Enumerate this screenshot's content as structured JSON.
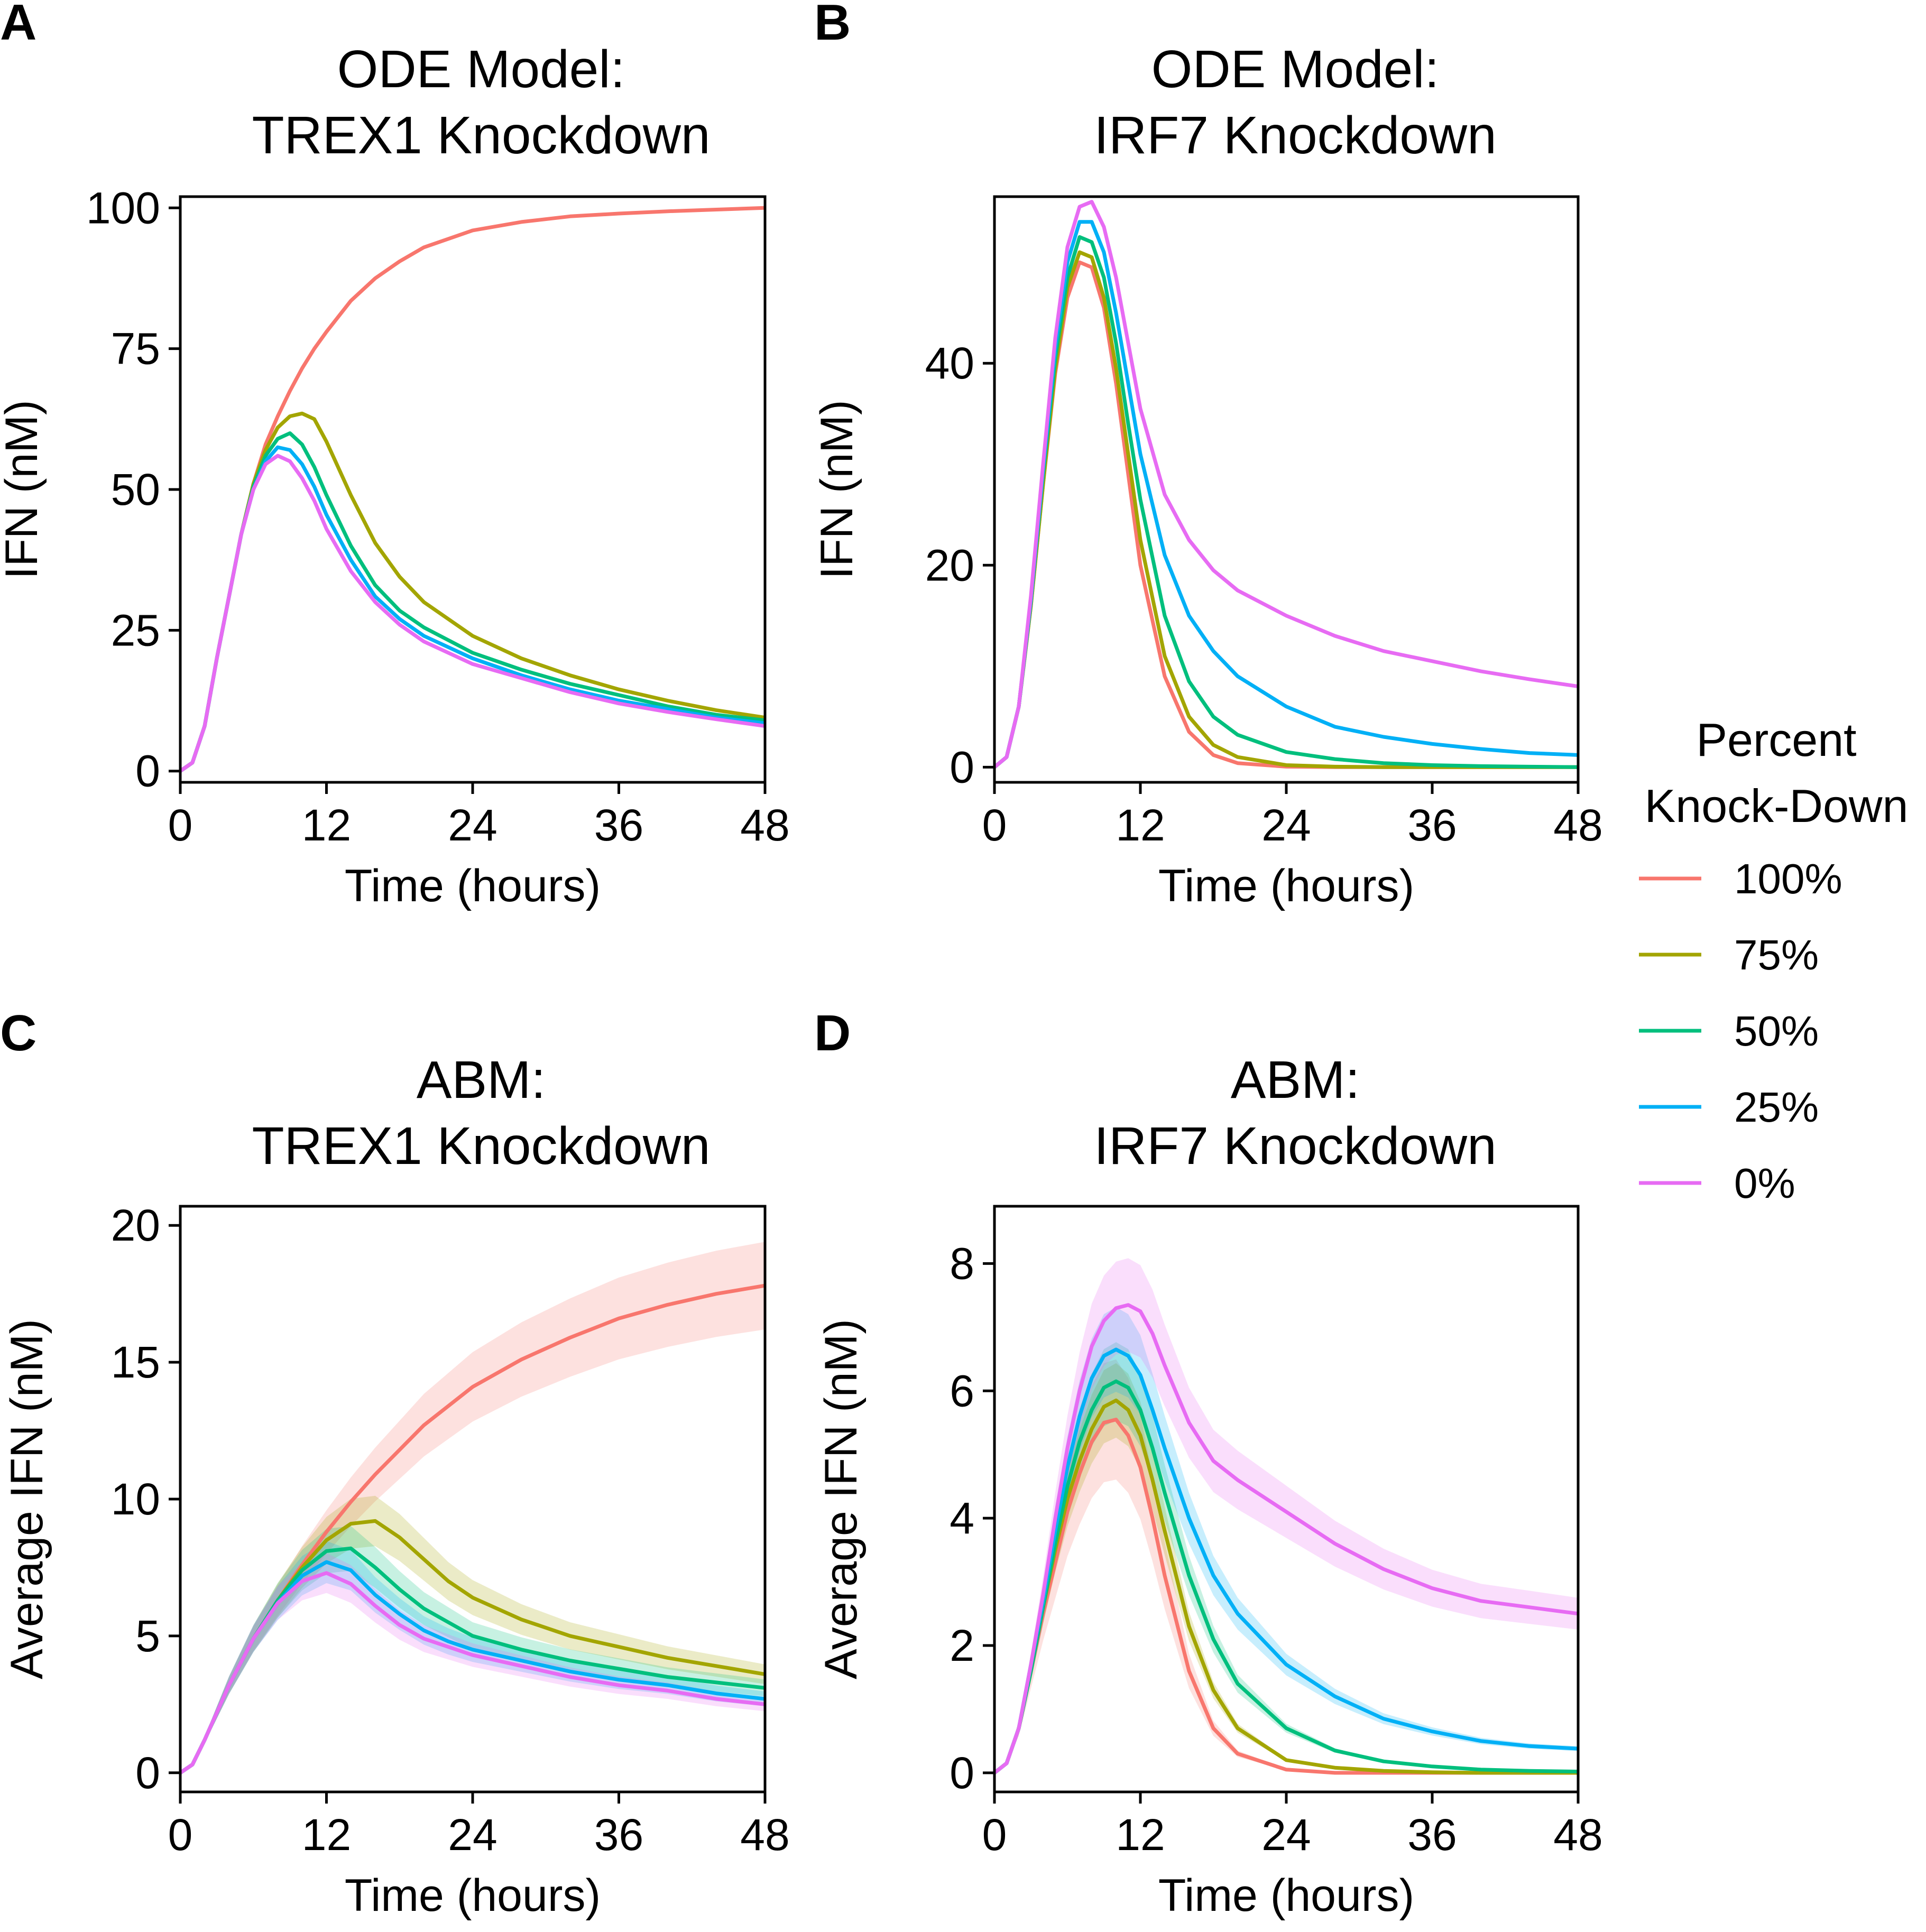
{
  "legend": {
    "title": [
      "Percent",
      "Knock-Down"
    ],
    "entries": [
      {
        "label": "100%",
        "color": "#F8766D"
      },
      {
        "label": "75%",
        "color": "#A3A500"
      },
      {
        "label": "50%",
        "color": "#00BF7D"
      },
      {
        "label": "25%",
        "color": "#00B0F6"
      },
      {
        "label": "0%",
        "color": "#E76BF3"
      }
    ],
    "placement": "right"
  },
  "chart_data": [
    {
      "panel": "A",
      "type": "line",
      "title": [
        "ODE Model:",
        "TREX1 Knockdown"
      ],
      "xlabel": "Time (hours)",
      "ylabel": "IFN (nM)",
      "xlim": [
        0,
        48
      ],
      "ylim": [
        -2,
        102
      ],
      "xticks": [
        0,
        12,
        24,
        36,
        48
      ],
      "yticks": [
        0,
        25,
        50,
        75,
        100
      ],
      "grid": false,
      "legend": "right",
      "x": [
        0,
        1,
        2,
        3,
        4,
        5,
        6,
        7,
        8,
        9,
        10,
        11,
        12,
        14,
        16,
        18,
        20,
        24,
        28,
        32,
        36,
        40,
        44,
        48
      ],
      "series": [
        {
          "name": "100%",
          "color": "#F8766D",
          "values": [
            0,
            1.5,
            8,
            20,
            31,
            42,
            51,
            58,
            63,
            67.5,
            71.5,
            75,
            78,
            83.5,
            87.5,
            90.5,
            93,
            96,
            97.5,
            98.5,
            99,
            99.4,
            99.7,
            100
          ]
        },
        {
          "name": "75%",
          "color": "#A3A500",
          "values": [
            0,
            1.5,
            8,
            20,
            31,
            42,
            51,
            57,
            61,
            63,
            63.5,
            62.5,
            58.5,
            49,
            40.5,
            34.5,
            30,
            24,
            20,
            17,
            14.5,
            12.5,
            10.8,
            9.5
          ]
        },
        {
          "name": "50%",
          "color": "#00BF7D",
          "values": [
            0,
            1.5,
            8,
            20,
            31,
            42,
            50.5,
            56,
            59,
            60,
            58,
            54,
            49,
            40,
            33,
            28.5,
            25.5,
            21,
            18,
            15.5,
            13.5,
            11.5,
            10,
            9
          ]
        },
        {
          "name": "25%",
          "color": "#00B0F6",
          "values": [
            0,
            1.5,
            8,
            20,
            31,
            42,
            50,
            55,
            57.5,
            57,
            54.5,
            50.5,
            45.5,
            37.5,
            31,
            27,
            24,
            20,
            17,
            14.5,
            12.5,
            11,
            9.5,
            8.5
          ]
        },
        {
          "name": "0%",
          "color": "#E76BF3",
          "values": [
            0,
            1.5,
            8,
            20,
            31,
            42,
            50,
            54.5,
            56,
            55,
            52,
            48,
            43,
            35.5,
            30,
            26,
            23,
            19,
            16.5,
            14,
            12,
            10.5,
            9.2,
            8
          ]
        }
      ]
    },
    {
      "panel": "B",
      "type": "line",
      "title": [
        "ODE Model:",
        "IRF7 Knockdown"
      ],
      "xlabel": "Time (hours)",
      "ylabel": "IFN (nM)",
      "xlim": [
        0,
        48
      ],
      "ylim": [
        -1.5,
        56.5
      ],
      "xticks": [
        0,
        12,
        24,
        36,
        48
      ],
      "yticks": [
        0,
        20,
        40
      ],
      "grid": false,
      "legend": "right",
      "x": [
        0,
        1,
        2,
        3,
        4,
        5,
        6,
        7,
        8,
        9,
        10,
        11,
        12,
        14,
        16,
        18,
        20,
        24,
        28,
        32,
        36,
        40,
        44,
        48
      ],
      "series": [
        {
          "name": "100%",
          "color": "#F8766D",
          "values": [
            0,
            1,
            6,
            16,
            28,
            39,
            46.5,
            50,
            49.5,
            45.5,
            38,
            29,
            20,
            9,
            3.5,
            1.2,
            0.4,
            0.05,
            0,
            0,
            0,
            0,
            0,
            0
          ]
        },
        {
          "name": "75%",
          "color": "#A3A500",
          "values": [
            0,
            1,
            6,
            16,
            28,
            39.5,
            47.5,
            51,
            50.5,
            46.5,
            39.5,
            31,
            22.5,
            11,
            5,
            2.2,
            1,
            0.2,
            0.05,
            0,
            0,
            0,
            0,
            0
          ]
        },
        {
          "name": "50%",
          "color": "#00BF7D",
          "values": [
            0,
            1,
            6,
            16.5,
            29,
            40.5,
            48.5,
            52.5,
            52,
            48.5,
            42,
            34,
            26.5,
            15,
            8.5,
            5,
            3.2,
            1.5,
            0.8,
            0.4,
            0.2,
            0.1,
            0.05,
            0
          ]
        },
        {
          "name": "25%",
          "color": "#00B0F6",
          "values": [
            0,
            1,
            6,
            16.5,
            29.5,
            41.5,
            50,
            54,
            54,
            51,
            45,
            38,
            31,
            21,
            15,
            11.5,
            9,
            6,
            4,
            3,
            2.3,
            1.8,
            1.4,
            1.2
          ]
        },
        {
          "name": "0%",
          "color": "#E76BF3",
          "values": [
            0,
            1,
            6,
            17,
            30,
            42.5,
            51.5,
            55.5,
            56,
            53.5,
            48.5,
            42,
            35.5,
            27,
            22.5,
            19.5,
            17.5,
            15,
            13,
            11.5,
            10.5,
            9.5,
            8.7,
            8
          ]
        }
      ]
    },
    {
      "panel": "C",
      "type": "line",
      "title": [
        "ABM:",
        "TREX1 Knockdown"
      ],
      "xlabel": "Time (hours)",
      "ylabel": "Average IFN (nM)",
      "xlim": [
        0,
        48
      ],
      "ylim": [
        -0.7,
        20.7
      ],
      "xticks": [
        0,
        12,
        24,
        36,
        48
      ],
      "yticks": [
        0,
        5,
        10,
        15,
        20
      ],
      "grid": false,
      "legend": "right",
      "x": [
        0,
        1,
        2,
        3,
        4,
        6,
        8,
        10,
        12,
        14,
        16,
        18,
        20,
        22,
        24,
        28,
        32,
        36,
        40,
        44,
        48
      ],
      "series": [
        {
          "name": "100%",
          "color": "#F8766D",
          "band": 0.09,
          "values": [
            0,
            0.3,
            1.2,
            2.2,
            3.2,
            4.9,
            6.3,
            7.6,
            8.8,
            9.9,
            10.9,
            11.8,
            12.7,
            13.4,
            14.1,
            15.1,
            15.9,
            16.6,
            17.1,
            17.5,
            17.8
          ]
        },
        {
          "name": "75%",
          "color": "#A3A500",
          "band": 0.1,
          "values": [
            0,
            0.3,
            1.2,
            2.2,
            3.2,
            4.9,
            6.3,
            7.5,
            8.5,
            9.1,
            9.2,
            8.6,
            7.8,
            7.0,
            6.4,
            5.6,
            5.0,
            4.6,
            4.2,
            3.9,
            3.6
          ]
        },
        {
          "name": "50%",
          "color": "#00BF7D",
          "band": 0.1,
          "values": [
            0,
            0.3,
            1.2,
            2.2,
            3.2,
            4.9,
            6.3,
            7.4,
            8.1,
            8.2,
            7.5,
            6.7,
            6.0,
            5.5,
            5.0,
            4.5,
            4.1,
            3.8,
            3.5,
            3.3,
            3.1
          ]
        },
        {
          "name": "25%",
          "color": "#00B0F6",
          "band": 0.1,
          "values": [
            0,
            0.3,
            1.2,
            2.2,
            3.2,
            4.9,
            6.2,
            7.2,
            7.7,
            7.4,
            6.5,
            5.8,
            5.2,
            4.8,
            4.5,
            4.1,
            3.7,
            3.4,
            3.2,
            2.9,
            2.7
          ]
        },
        {
          "name": "0%",
          "color": "#E76BF3",
          "band": 0.1,
          "values": [
            0,
            0.3,
            1.2,
            2.2,
            3.2,
            4.9,
            6.2,
            7.0,
            7.3,
            6.9,
            6.1,
            5.4,
            4.9,
            4.6,
            4.3,
            3.9,
            3.5,
            3.2,
            3.0,
            2.7,
            2.5
          ]
        }
      ]
    },
    {
      "panel": "D",
      "type": "line",
      "title": [
        "ABM:",
        "IRF7 Knockdown"
      ],
      "xlabel": "Time (hours)",
      "ylabel": "Average IFN (nM)",
      "xlim": [
        0,
        48
      ],
      "ylim": [
        -0.3,
        8.9
      ],
      "xticks": [
        0,
        12,
        24,
        36,
        48
      ],
      "yticks": [
        0,
        2,
        4,
        6,
        8
      ],
      "grid": false,
      "legend": "right",
      "x": [
        0,
        1,
        2,
        3,
        4,
        5,
        6,
        7,
        8,
        9,
        10,
        11,
        12,
        13,
        14,
        16,
        18,
        20,
        24,
        28,
        32,
        36,
        40,
        44,
        48
      ],
      "series": [
        {
          "name": "100%",
          "color": "#F8766D",
          "band": 0.17,
          "values": [
            0,
            0.15,
            0.7,
            1.6,
            2.5,
            3.3,
            4.1,
            4.7,
            5.2,
            5.5,
            5.55,
            5.3,
            4.8,
            4.0,
            3.1,
            1.6,
            0.7,
            0.3,
            0.05,
            0,
            0,
            0,
            0,
            0,
            0
          ]
        },
        {
          "name": "75%",
          "color": "#A3A500",
          "band": 0.1,
          "values": [
            0,
            0.15,
            0.7,
            1.6,
            2.6,
            3.5,
            4.3,
            4.9,
            5.4,
            5.75,
            5.85,
            5.7,
            5.3,
            4.6,
            3.8,
            2.3,
            1.3,
            0.7,
            0.2,
            0.08,
            0.03,
            0.01,
            0,
            0,
            0
          ]
        },
        {
          "name": "50%",
          "color": "#00BF7D",
          "band": 0.1,
          "values": [
            0,
            0.15,
            0.7,
            1.6,
            2.6,
            3.6,
            4.5,
            5.2,
            5.7,
            6.05,
            6.15,
            6.05,
            5.7,
            5.1,
            4.4,
            3.1,
            2.1,
            1.4,
            0.7,
            0.35,
            0.18,
            0.1,
            0.05,
            0.03,
            0.02
          ]
        },
        {
          "name": "25%",
          "color": "#00B0F6",
          "band": 0.1,
          "values": [
            0,
            0.15,
            0.7,
            1.7,
            2.7,
            3.8,
            4.8,
            5.6,
            6.2,
            6.55,
            6.65,
            6.55,
            6.25,
            5.7,
            5.1,
            4.0,
            3.1,
            2.5,
            1.7,
            1.2,
            0.85,
            0.65,
            0.5,
            0.42,
            0.38
          ]
        },
        {
          "name": "0%",
          "color": "#E76BF3",
          "band": 0.1,
          "values": [
            0,
            0.15,
            0.7,
            1.7,
            2.8,
            4.0,
            5.1,
            6.0,
            6.7,
            7.1,
            7.3,
            7.35,
            7.25,
            6.9,
            6.4,
            5.5,
            4.9,
            4.6,
            4.1,
            3.6,
            3.2,
            2.9,
            2.7,
            2.6,
            2.5
          ]
        }
      ]
    }
  ]
}
